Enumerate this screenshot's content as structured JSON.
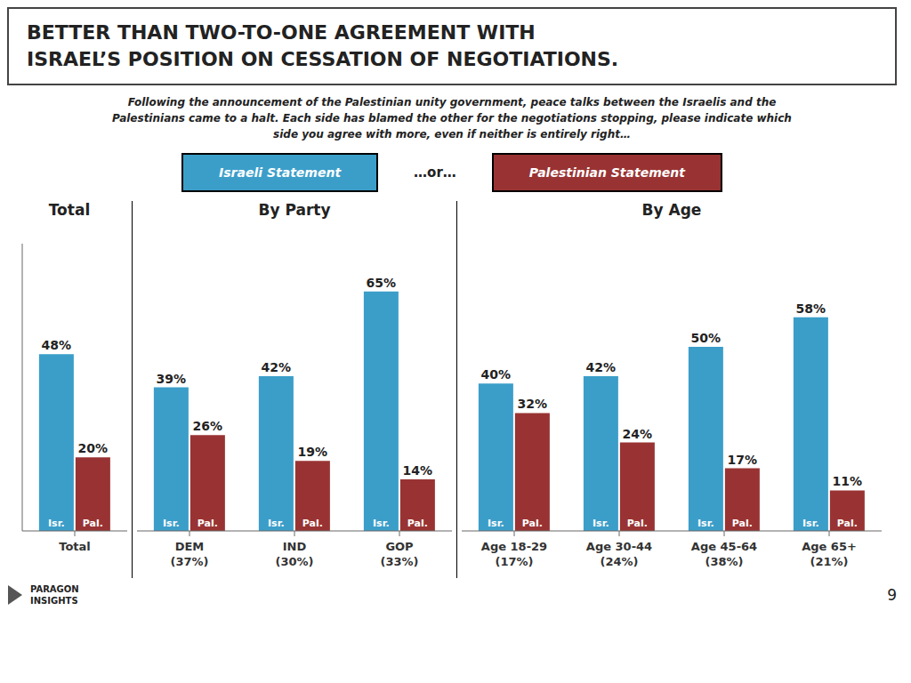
{
  "chart_data": {
    "type": "bar",
    "title": "BETTER THAN TWO-TO-ONE AGREEMENT WITH\nISRAEL’S POSITION ON CESSATION OF NEGOTIATIONS.",
    "subtitle": "Following the announcement of the Palestinian unity government, peace talks between the Israelis and the\nPalestinians came to a halt. Each side has blamed the other for the negotiations stopping, please indicate which\nside you agree with more, even if neither is entirely right…",
    "categories": [
      "Total",
      "DEM\n(37%)",
      "IND\n(30%)",
      "GOP\n(33%)",
      "Age 18-29\n(17%)",
      "Age 30-44\n(24%)",
      "Age 45-64\n(38%)",
      "Age 65+\n(21%)"
    ],
    "category_groups": [
      "Total",
      "By Party",
      "By Party",
      "By Party",
      "By Age",
      "By Age",
      "By Age",
      "By Age"
    ],
    "series": [
      {
        "name": "Israeli Statement",
        "bar_label": "Isr.",
        "color": "#3B9EC9",
        "values": [
          48,
          39,
          42,
          65,
          40,
          42,
          50,
          58
        ],
        "value_labels": [
          "48%",
          "39%",
          "42%",
          "65%",
          "40%",
          "42%",
          "50%",
          "58%"
        ]
      },
      {
        "name": "Palestinian Statement",
        "bar_label": "Pal.",
        "color": "#993333",
        "values": [
          20,
          26,
          19,
          14,
          32,
          24,
          17,
          11
        ],
        "value_labels": [
          "20%",
          "26%",
          "19%",
          "14%",
          "32%",
          "24%",
          "17%",
          "11%"
        ]
      }
    ],
    "ylim": [
      0,
      78
    ],
    "tick_labels": false,
    "data_labels": true,
    "grid": false,
    "annotations": {
      "legend_separator": "…or…",
      "page_number": "9",
      "logo": [
        "PARAGON",
        "INSIGHTS"
      ]
    }
  }
}
